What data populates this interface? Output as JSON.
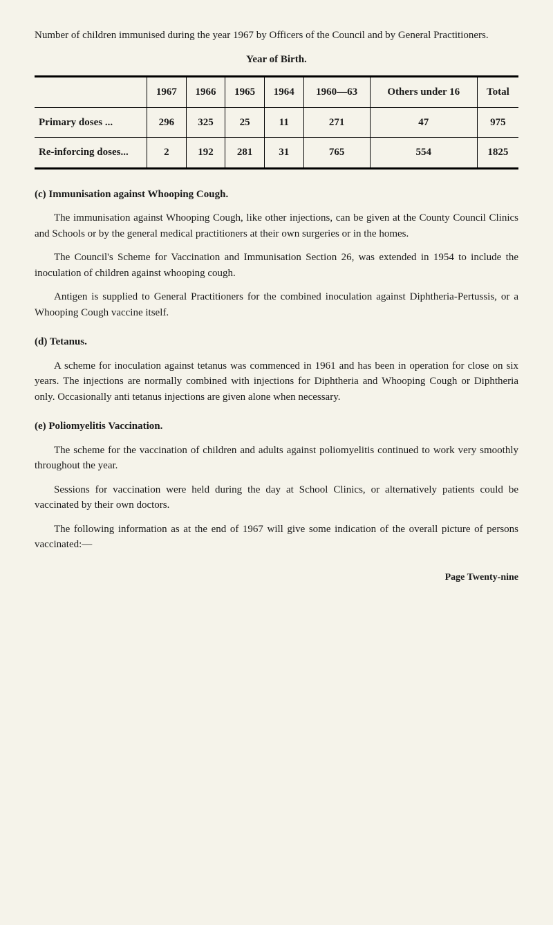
{
  "intro": "Number of children immunised during the year 1967 by Officers of the Council and by General Practitioners.",
  "table": {
    "title": "Year of Birth.",
    "headers": [
      "",
      "1967",
      "1966",
      "1965",
      "1964",
      "1960—63",
      "Others under 16",
      "Total"
    ],
    "rows": [
      [
        "Primary doses ...",
        "296",
        "325",
        "25",
        "11",
        "271",
        "47",
        "975"
      ],
      [
        "Re-inforcing doses...",
        "2",
        "192",
        "281",
        "31",
        "765",
        "554",
        "1825"
      ]
    ]
  },
  "sections": {
    "c": {
      "heading": "(c) Immunisation against Whooping Cough.",
      "paras": [
        "The immunisation against Whooping Cough, like other injections, can be given at the County Council Clinics and Schools or by the general medical practitioners at their own surgeries or in the homes.",
        "The Council's Scheme for Vaccination and Immunisation Section 26, was extended in 1954 to include the inoculation of children against whooping cough.",
        "Antigen is supplied to General Practitioners for the combined inoculation against Diphtheria-Pertussis, or a Whooping Cough vaccine itself."
      ]
    },
    "d": {
      "heading": "(d) Tetanus.",
      "paras": [
        "A scheme for inoculation against tetanus was commenced in 1961 and has been in operation for close on six years. The injections are normally combined with injections for Diphtheria and Whooping Cough or Diphtheria only. Occasionally anti tetanus injections are given alone when necessary."
      ]
    },
    "e": {
      "heading": "(e) Poliomyelitis Vaccination.",
      "paras": [
        "The scheme for the vaccination of children and adults against poliomyelitis continued to work very smoothly throughout the year.",
        "Sessions for vaccination were held during the day at School Clinics, or alternatively patients could be vaccinated by their own doctors.",
        "The following information as at the end of 1967 will give some indication of the overall picture of persons vaccinated:—"
      ]
    }
  },
  "footer": "Page Twenty-nine"
}
